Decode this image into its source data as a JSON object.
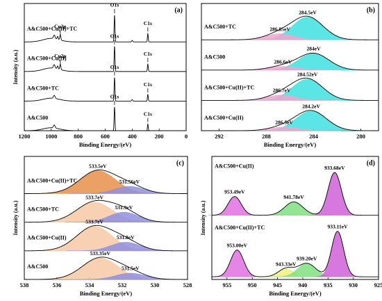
{
  "chart_data": [
    {
      "type": "line",
      "panel_label": "(a)",
      "xlabel": "Binding Energy/(eV)",
      "ylabel": "Intensity (a.u.)",
      "xlim": [
        1200,
        0
      ],
      "xticks": [
        1200,
        1000,
        800,
        600,
        400,
        200,
        0
      ],
      "ylim": [
        0,
        4.3
      ],
      "series": [
        {
          "name": "A&C500+Cu(II)+TC",
          "offset": 3.0,
          "peaks": [
            {
              "center": 1000,
              "height": 0.12,
              "width": 60
            },
            {
              "center": 978,
              "height": 0.12,
              "width": 6
            },
            {
              "center": 953,
              "height": 0.1,
              "width": 4
            },
            {
              "center": 933,
              "height": 0.18,
              "width": 4,
              "label": "Cu2p"
            },
            {
              "center": 531,
              "height": 0.9,
              "width": 3,
              "label": "O1s"
            },
            {
              "center": 400,
              "height": 0.05,
              "width": 4
            },
            {
              "center": 284,
              "height": 0.28,
              "width": 3,
              "label": "C1s"
            }
          ]
        },
        {
          "name": "A&C500+Cu(II)",
          "offset": 2.0,
          "peaks": [
            {
              "center": 1000,
              "height": 0.12,
              "width": 60
            },
            {
              "center": 978,
              "height": 0.12,
              "width": 6
            },
            {
              "center": 953,
              "height": 0.1,
              "width": 4
            },
            {
              "center": 933,
              "height": 0.18,
              "width": 4,
              "label": "Cu2p"
            },
            {
              "center": 531,
              "height": 0.85,
              "width": 3,
              "label": "O1s"
            },
            {
              "center": 284,
              "height": 0.25,
              "width": 3,
              "label": "C1s"
            }
          ]
        },
        {
          "name": "A&C500+TC",
          "offset": 1.0,
          "peaks": [
            {
              "center": 1000,
              "height": 0.1,
              "width": 60
            },
            {
              "center": 978,
              "height": 0.1,
              "width": 6
            },
            {
              "center": 531,
              "height": 0.8,
              "width": 3,
              "label": "O1s"
            },
            {
              "center": 400,
              "height": 0.05,
              "width": 4
            },
            {
              "center": 284,
              "height": 0.22,
              "width": 3,
              "label": "C1s"
            }
          ]
        },
        {
          "name": "A&C500",
          "offset": 0.0,
          "peaks": [
            {
              "center": 1000,
              "height": 0.1,
              "width": 60
            },
            {
              "center": 978,
              "height": 0.1,
              "width": 6
            },
            {
              "center": 531,
              "height": 0.8,
              "width": 3,
              "label": "O1s"
            },
            {
              "center": 284,
              "height": 0.22,
              "width": 3,
              "label": "C1s"
            }
          ]
        }
      ]
    },
    {
      "type": "line",
      "panel_label": "(b)",
      "xlabel": "Binding Energy/(eV)",
      "xlim": [
        293.5,
        278.5
      ],
      "xticks": [
        292,
        288,
        284,
        280
      ],
      "ylim": [
        0,
        4.2
      ],
      "series": [
        {
          "name": "A&C500+TC",
          "offset": 3.0,
          "peaks": [
            {
              "center": 284.5,
              "value_label": "284.5eV",
              "height": 0.75,
              "width": 1.3,
              "color": "#3fe0e0"
            },
            {
              "center": 286.85,
              "value_label": "286.85eV",
              "height": 0.2,
              "width": 1.2,
              "color": "#f2a6cf"
            }
          ]
        },
        {
          "name": "A&C500",
          "offset": 2.0,
          "peaks": [
            {
              "center": 284,
              "value_label": "284eV",
              "height": 0.55,
              "width": 1.3,
              "color": "#3fe0e0"
            },
            {
              "center": 286.6,
              "value_label": "286.6eV",
              "height": 0.12,
              "width": 1.2,
              "color": "#f2a6cf"
            }
          ]
        },
        {
          "name": "A&C500+Cu(II)+TC",
          "offset": 1.0,
          "peaks": [
            {
              "center": 284.52,
              "value_label": "284.52eV",
              "height": 0.7,
              "width": 1.3,
              "color": "#3fe0e0"
            },
            {
              "center": 286.7,
              "value_label": "286.7eV",
              "height": 0.18,
              "width": 1.2,
              "color": "#f2a6cf"
            }
          ]
        },
        {
          "name": "A&C500+Cu(II)",
          "offset": 0.0,
          "peaks": [
            {
              "center": 284.2,
              "value_label": "284.2eV",
              "height": 0.65,
              "width": 1.3,
              "color": "#3fe0e0"
            },
            {
              "center": 286.5,
              "value_label": "286.5eV",
              "height": 0.12,
              "width": 1.2,
              "color": "#f2a6cf"
            }
          ]
        }
      ]
    },
    {
      "type": "line",
      "panel_label": "(c)",
      "xlabel": "Binding Energy/(eV)",
      "ylabel": "Intensity (a.u.)",
      "xlim": [
        538,
        528
      ],
      "xticks": [
        538,
        536,
        534,
        532,
        530,
        528
      ],
      "ylim": [
        0,
        4.3
      ],
      "series": [
        {
          "name": "A&C500+Cu(II)+TC",
          "offset": 3.0,
          "peaks": [
            {
              "center": 533.5,
              "value_label": "533.5eV",
              "height": 0.8,
              "width": 1.1,
              "color": "#e8904a"
            },
            {
              "center": 531.56,
              "value_label": "531.56eV",
              "height": 0.25,
              "width": 0.9,
              "color": "#8f8fe0"
            }
          ]
        },
        {
          "name": "A&C500+TC",
          "offset": 2.0,
          "peaks": [
            {
              "center": 533.7,
              "value_label": "533.7eV",
              "height": 0.7,
              "width": 1.1,
              "color": "#f7c9a4"
            },
            {
              "center": 531.9,
              "value_label": "531.9eV",
              "height": 0.35,
              "width": 0.9,
              "color": "#8f8fe0"
            }
          ]
        },
        {
          "name": "A&C500+Cu(II)",
          "offset": 1.0,
          "peaks": [
            {
              "center": 533.7,
              "value_label": "533.7eV",
              "height": 0.85,
              "width": 1.1,
              "color": "#f7c9a4"
            },
            {
              "center": 531.8,
              "value_label": "531.8eV",
              "height": 0.3,
              "width": 0.9,
              "color": "#8f8fe0"
            }
          ]
        },
        {
          "name": "A&C500",
          "offset": 0.0,
          "peaks": [
            {
              "center": 533.35,
              "value_label": "533.35eV",
              "height": 0.75,
              "width": 1.1,
              "color": "#f7c9a4"
            },
            {
              "center": 531.5,
              "value_label": "531.5eV",
              "height": 0.22,
              "width": 0.9,
              "color": "#8f8fe0"
            }
          ]
        }
      ]
    },
    {
      "type": "line",
      "panel_label": "(d)",
      "xlabel": "Binding Energy/(eV)",
      "ylabel": "Intensity (a.u.)",
      "xlim": [
        958,
        925
      ],
      "xticks": [
        955,
        950,
        945,
        940,
        935,
        930,
        925
      ],
      "ylim": [
        0,
        2.3
      ],
      "series": [
        {
          "name": "A&C500+Cu(II)",
          "offset": 1.2,
          "peaks": [
            {
              "center": 953.49,
              "value_label": "953.49eV",
              "height": 0.35,
              "width": 1.3,
              "color": "#e070e0"
            },
            {
              "center": 941.78,
              "value_label": "941.78eV",
              "height": 0.25,
              "width": 1.8,
              "color": "#80e080"
            },
            {
              "center": 933.68,
              "value_label": "933.68eV",
              "height": 0.8,
              "width": 1.3,
              "color": "#d060d8"
            }
          ]
        },
        {
          "name": "A&C500+Cu(II)+TC",
          "offset": 0.05,
          "peaks": [
            {
              "center": 953.0,
              "value_label": "953.00eV",
              "height": 0.5,
              "width": 1.3,
              "color": "#e070e0"
            },
            {
              "center": 943.33,
              "value_label": "943.33eV",
              "height": 0.15,
              "width": 1.5,
              "color": "#f0f080"
            },
            {
              "center": 939.2,
              "value_label": "939.20eV",
              "height": 0.25,
              "width": 1.8,
              "color": "#80e080"
            },
            {
              "center": 933.11,
              "value_label": "933.11eV",
              "height": 0.85,
              "width": 1.2,
              "color": "#d060d8"
            }
          ]
        }
      ]
    }
  ]
}
